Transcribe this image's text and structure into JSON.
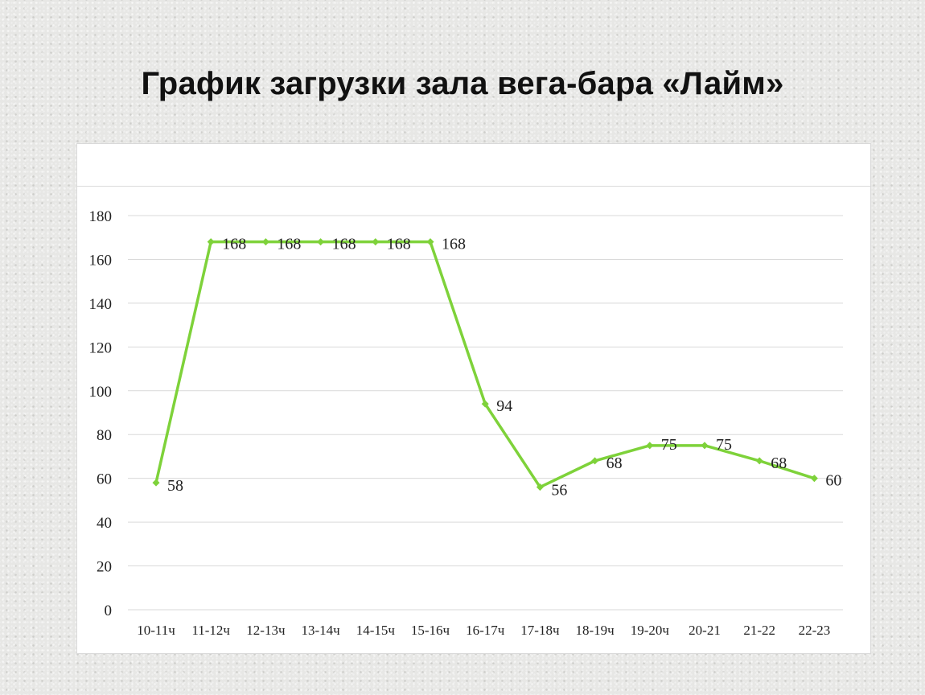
{
  "slide": {
    "title": "График загрузки зала вега-бара «Лайм»"
  },
  "chart_data": {
    "type": "line",
    "title": "",
    "xlabel": "",
    "ylabel": "",
    "categories": [
      "10-11ч",
      "11-12ч",
      "12-13ч",
      "13-14ч",
      "14-15ч",
      "15-16ч",
      "16-17ч",
      "17-18ч",
      "18-19ч",
      "19-20ч",
      "20-21",
      "21-22",
      "22-23"
    ],
    "series": [
      {
        "values": [
          58,
          168,
          168,
          168,
          168,
          168,
          94,
          56,
          68,
          75,
          75,
          68,
          60
        ],
        "color": "#7ed23a"
      }
    ],
    "ylim": [
      0,
      180
    ],
    "yticks": [
      0,
      20,
      40,
      60,
      80,
      100,
      120,
      140,
      160,
      180
    ],
    "grid": true,
    "legend": "none",
    "data_labels": true,
    "colors": {
      "gridline": "#d9d9d9",
      "line": "#7ed23a"
    }
  }
}
